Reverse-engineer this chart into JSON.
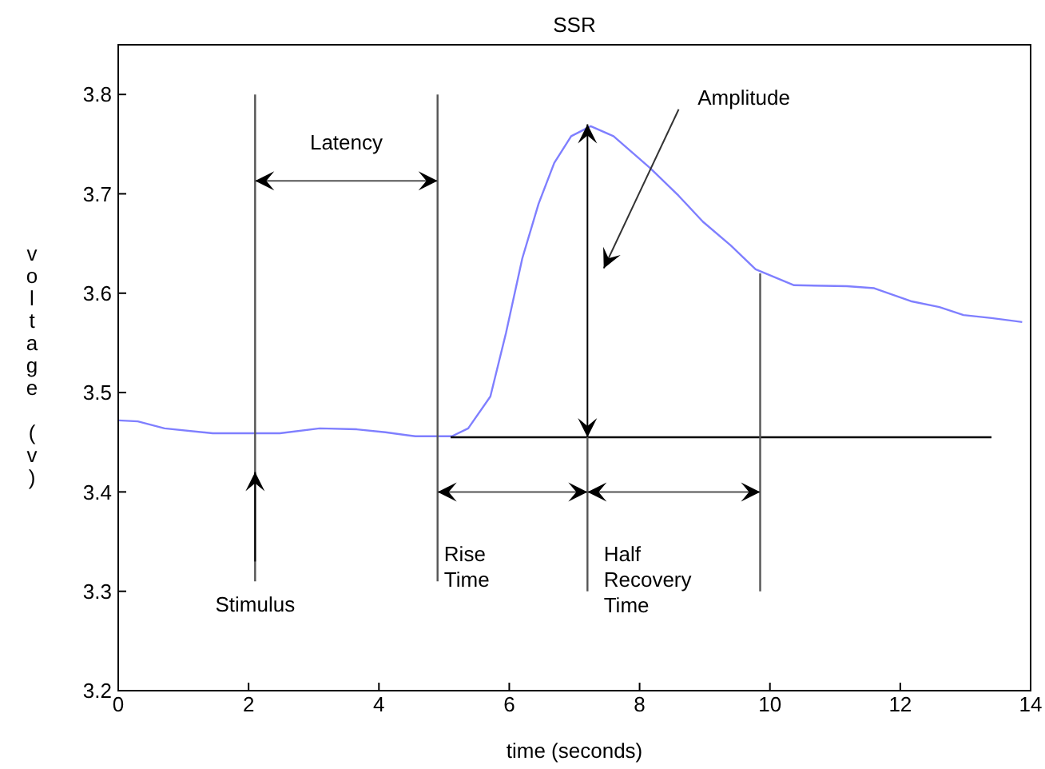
{
  "chart_data": {
    "type": "line",
    "title": "SSR",
    "xlabel": "time (seconds)",
    "ylabel": "voltage (v)",
    "xlim": [
      0,
      14
    ],
    "xticks": [
      0,
      2,
      4,
      6,
      8,
      10,
      12,
      14
    ],
    "ylim": [
      3.2,
      3.85
    ],
    "yticks": [
      3.2,
      3.3,
      3.4,
      3.5,
      3.6,
      3.7,
      3.8
    ],
    "marker": "none",
    "line_style": "solid",
    "series": [
      {
        "color": "#7f7fff",
        "x": [
          0,
          0.3,
          0.71,
          1.45,
          2.1,
          2.48,
          3.09,
          3.66,
          4.1,
          4.56,
          5.12,
          5.37,
          5.71,
          5.95,
          6.2,
          6.45,
          6.69,
          6.95,
          7.25,
          7.6,
          8.16,
          8.6,
          8.97,
          9.4,
          9.78,
          10.37,
          11.18,
          11.6,
          12.16,
          12.6,
          12.97,
          13.4,
          13.87
        ],
        "values": [
          3.472,
          3.471,
          3.464,
          3.459,
          3.459,
          3.459,
          3.464,
          3.463,
          3.46,
          3.456,
          3.456,
          3.464,
          3.496,
          3.56,
          3.635,
          3.69,
          3.731,
          3.758,
          3.768,
          3.758,
          3.726,
          3.698,
          3.672,
          3.648,
          3.624,
          3.608,
          3.607,
          3.605,
          3.592,
          3.586,
          3.578,
          3.575,
          3.571
        ]
      },
      {
        "color": "#000000",
        "x": [
          5.1,
          13.4
        ],
        "values": [
          3.455,
          3.455
        ]
      },
      {
        "color": "#555555",
        "x": [
          2.1,
          2.1
        ],
        "values": [
          3.31,
          3.8
        ]
      },
      {
        "color": "#555555",
        "x": [
          4.9,
          4.9
        ],
        "values": [
          3.31,
          3.8
        ]
      },
      {
        "color": "#555555",
        "x": [
          7.2,
          7.2
        ],
        "values": [
          3.3,
          3.455
        ]
      },
      {
        "color": "#555555",
        "x": [
          9.85,
          9.85
        ],
        "values": [
          3.3,
          3.62
        ]
      }
    ],
    "annotations": [
      "Latency",
      "Amplitude",
      "Stimulus",
      "Rise\nTime",
      "Half\nRecovery\nTime"
    ]
  }
}
